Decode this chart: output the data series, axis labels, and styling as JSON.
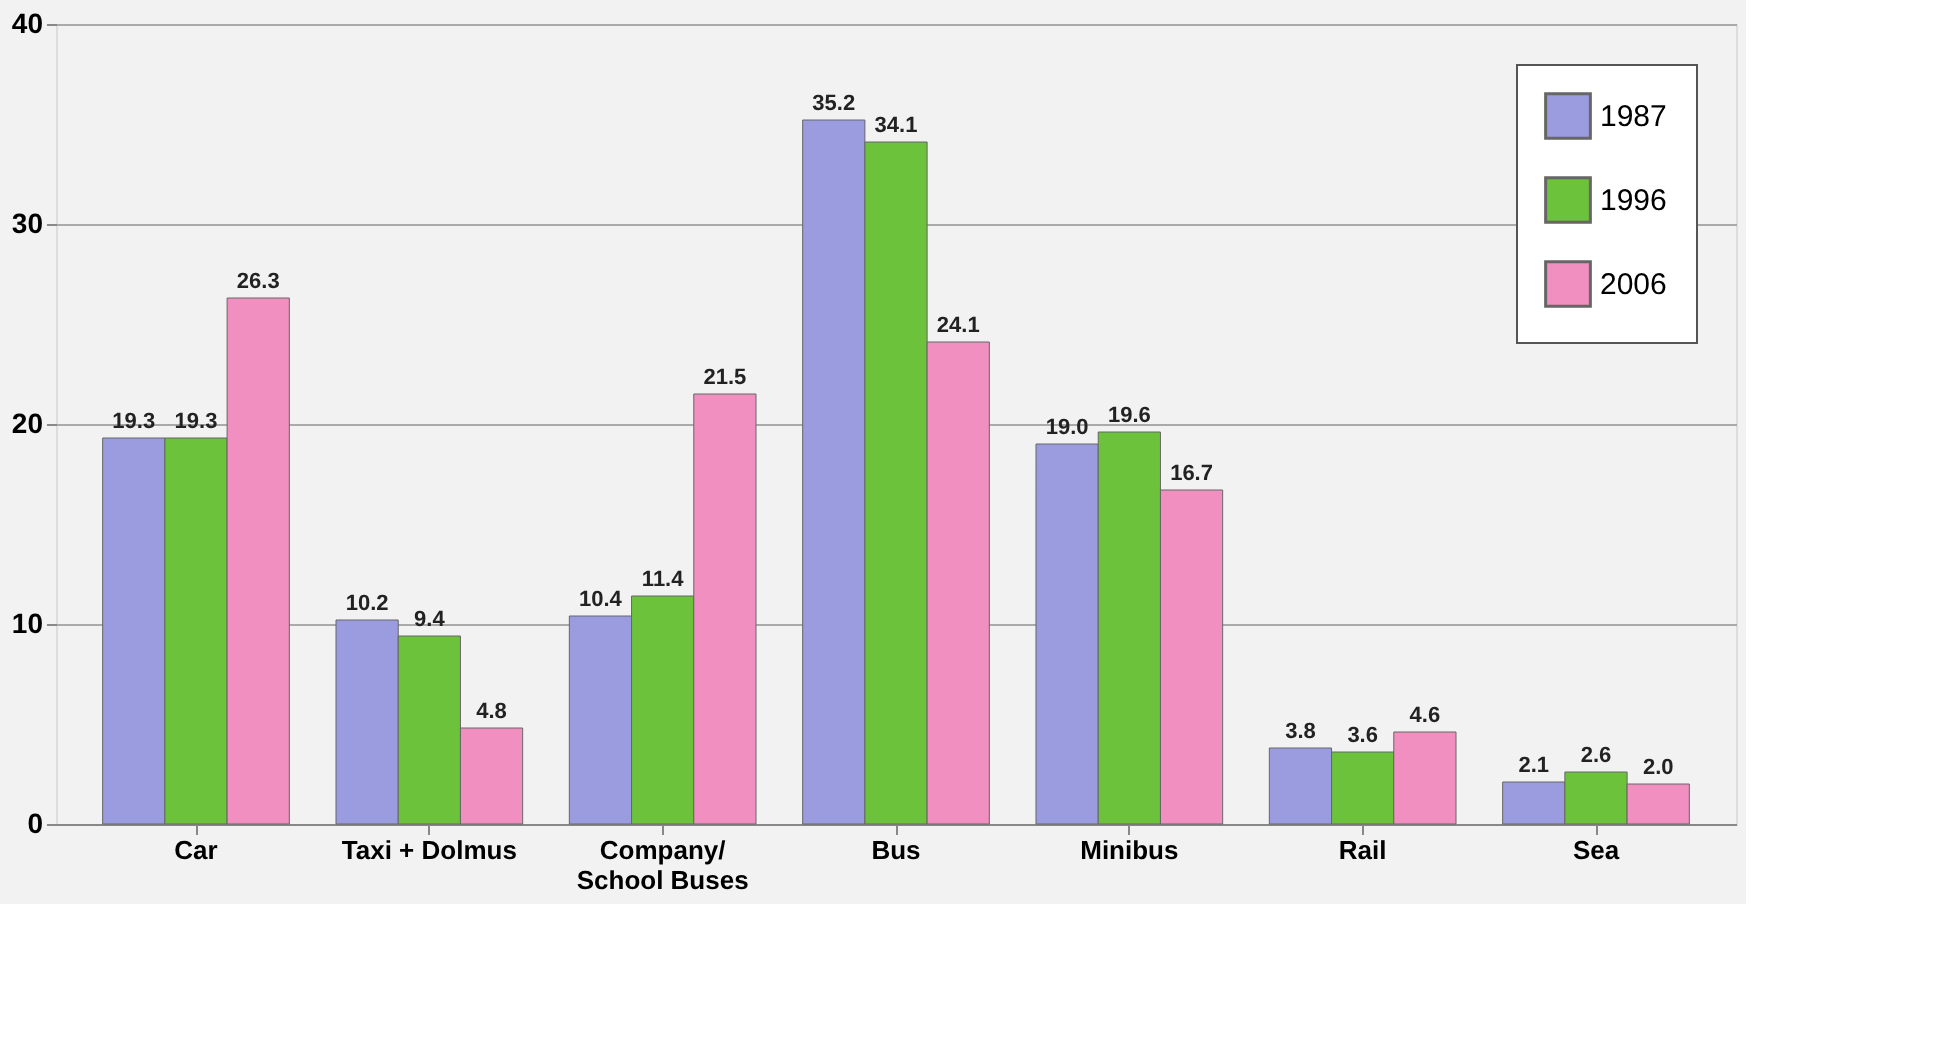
{
  "chart_data": {
    "type": "bar",
    "categories": [
      "Car",
      "Taxi + Dolmus",
      "Company/\nSchool Buses",
      "Bus",
      "Minibus",
      "Rail",
      "Sea"
    ],
    "series": [
      {
        "name": "1987",
        "color": "#9b9be0",
        "values": [
          19.3,
          10.2,
          10.4,
          35.2,
          19.0,
          3.8,
          2.1
        ]
      },
      {
        "name": "1996",
        "color": "#6cc23a",
        "values": [
          19.3,
          9.4,
          11.4,
          34.1,
          19.6,
          3.6,
          2.6
        ]
      },
      {
        "name": "2006",
        "color": "#f08fc0",
        "values": [
          26.3,
          4.8,
          21.5,
          24.1,
          16.7,
          4.6,
          2.0
        ]
      }
    ],
    "value_labels": [
      [
        "19.3",
        "10.2",
        "10.4",
        "35.2",
        "19.0",
        "3.8",
        "2.1"
      ],
      [
        "19.3",
        "9.4",
        "11.4",
        "34.1",
        "19.6",
        "3.6",
        "2.6"
      ],
      [
        "26.3",
        "4.8",
        "21.5",
        "24.1",
        "16.7",
        "4.6",
        "2.0"
      ]
    ],
    "ylim": [
      0,
      40
    ],
    "yticks": [
      0,
      10,
      20,
      30,
      40
    ],
    "grid": "y",
    "legend": "top right"
  }
}
